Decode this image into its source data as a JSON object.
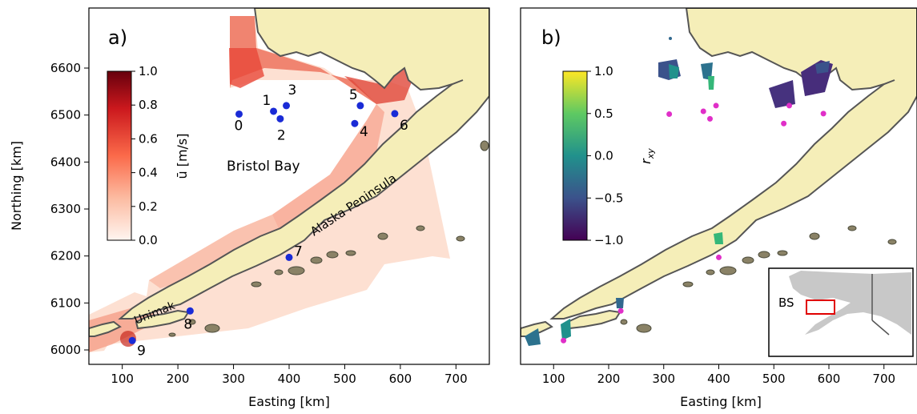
{
  "panel_a": {
    "label": "a)",
    "xlabel": "Easting [km]",
    "ylabel": "Northing [km]",
    "x_ticks": [
      "100",
      "200",
      "300",
      "400",
      "500",
      "600",
      "700"
    ],
    "y_ticks": [
      "6000",
      "6100",
      "6200",
      "6300",
      "6400",
      "6500",
      "6600"
    ],
    "colorbar": {
      "label": "ū [m/s]",
      "ticks": [
        "0.0",
        "0.2",
        "0.4",
        "0.6",
        "0.8",
        "1.0"
      ],
      "colors": [
        "#fff5f0",
        "#fcbba1",
        "#fb6a4a",
        "#cb181d",
        "#67000d"
      ]
    },
    "region_labels": {
      "bristol_bay": "Bristol Bay",
      "alaska_peninsula": "Alaska Peninsula",
      "unimak": "Unimak"
    },
    "stations": [
      {
        "id": "0",
        "x": 310,
        "y": 6502
      },
      {
        "id": "1",
        "x": 372,
        "y": 6508
      },
      {
        "id": "2",
        "x": 384,
        "y": 6492
      },
      {
        "id": "3",
        "x": 395,
        "y": 6520
      },
      {
        "id": "4",
        "x": 518,
        "y": 6482
      },
      {
        "id": "5",
        "x": 528,
        "y": 6520
      },
      {
        "id": "6",
        "x": 590,
        "y": 6503
      },
      {
        "id": "7",
        "x": 400,
        "y": 6197
      },
      {
        "id": "8",
        "x": 222,
        "y": 6083
      },
      {
        "id": "9",
        "x": 118,
        "y": 6020
      }
    ]
  },
  "panel_b": {
    "label": "b)",
    "xlabel": "Easting [km]",
    "x_ticks": [
      "100",
      "200",
      "300",
      "400",
      "500",
      "600",
      "700"
    ],
    "colorbar": {
      "label": "r_xy",
      "ticks": [
        "1.0",
        "0.5",
        "0.0",
        "−0.5",
        "−1.0"
      ],
      "colors": [
        "#fde725",
        "#35b779",
        "#21918c",
        "#31688e",
        "#440154"
      ]
    },
    "inset": {
      "label": "BS"
    }
  },
  "colors": {
    "land": "#f5eeb8",
    "coast": "#555555",
    "station_a": "#1a2bd6",
    "station_b": "#e02fc8",
    "inset_land": "#c8c8c8",
    "inset_box": "#e00000"
  }
}
